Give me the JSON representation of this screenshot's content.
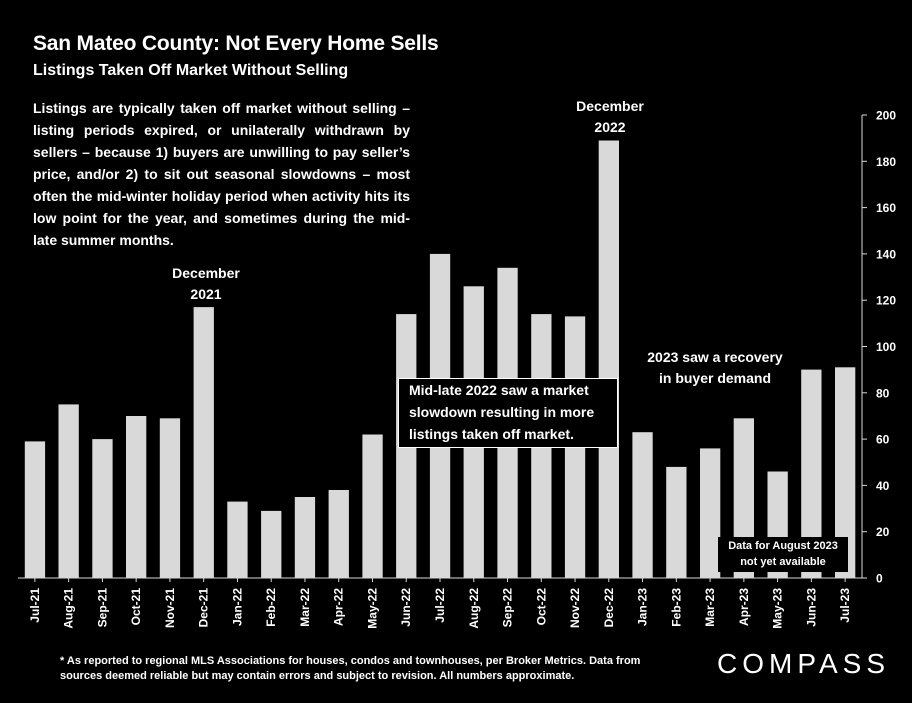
{
  "header": {
    "title": "San Mateo County: Not Every Home Sells",
    "subtitle": "Listings Taken Off Market Without Selling"
  },
  "description": "Listings are typically taken off market without selling – listing periods expired, or unilaterally withdrawn by sellers – because 1) buyers are unwilling to pay seller’s price, and/or 2) to sit out seasonal slowdowns – most often the mid-winter holiday period when activity hits its low point for the year, and sometimes during the mid-late summer months.",
  "annotations": {
    "dec_2021": [
      "December",
      "2021"
    ],
    "dec_2022": [
      "December",
      "2022"
    ],
    "mid_2022": "Mid-late 2022 saw a market slowdown resulting in more listings taken off market.",
    "recovery_2023": [
      "2023 saw a recovery",
      "in buyer demand"
    ],
    "aug_2023": [
      "Data for August 2023",
      "not yet available"
    ]
  },
  "footnote": "* As reported to regional MLS Associations for houses, condos and townhouses, per Broker Metrics. Data from sources deemed reliable but may contain errors and subject to revision. All numbers approximate.",
  "logo": "COMPASS",
  "chart_data": {
    "type": "bar",
    "categories": [
      "Jul-21",
      "Aug-21",
      "Sep-21",
      "Oct-21",
      "Nov-21",
      "Dec-21",
      "Jan-22",
      "Feb-22",
      "Mar-22",
      "Apr-22",
      "May-22",
      "Jun-22",
      "Jul-22",
      "Aug-22",
      "Sep-22",
      "Oct-22",
      "Nov-22",
      "Dec-22",
      "Jan-23",
      "Feb-23",
      "Mar-23",
      "Apr-23",
      "May-23",
      "Jun-23",
      "Jul-23"
    ],
    "values": [
      59,
      75,
      60,
      70,
      69,
      117,
      33,
      29,
      35,
      38,
      62,
      114,
      140,
      126,
      134,
      114,
      113,
      189,
      63,
      48,
      56,
      69,
      46,
      90,
      91
    ],
    "ylim": [
      0,
      200
    ],
    "yticks": [
      0,
      20,
      40,
      60,
      80,
      100,
      120,
      140,
      160,
      180,
      200
    ],
    "y_axis_side": "right",
    "grid": false,
    "bar_color": "#d9d9d9",
    "title": "San Mateo County: Not Every Home Sells",
    "subtitle": "Listings Taken Off Market Without Selling"
  }
}
